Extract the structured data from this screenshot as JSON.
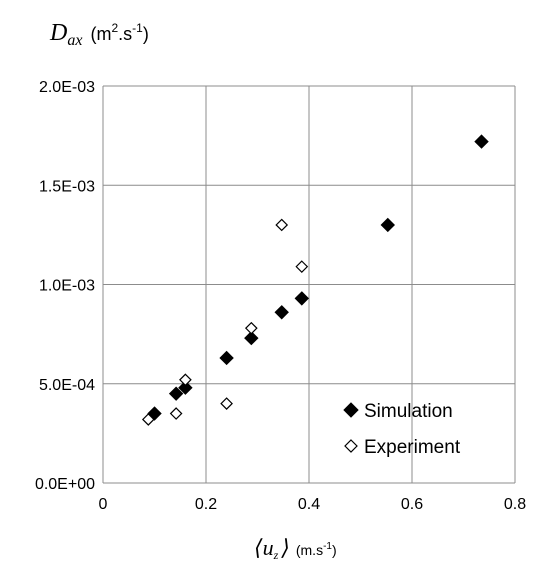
{
  "chart_data": {
    "type": "scatter",
    "title": "",
    "ylabel": {
      "symbol": "D",
      "subscript": "ax",
      "units_prefix": "(m",
      "units_sup1": "2",
      "units_mid": ".s",
      "units_sup2": "-1",
      "units_suffix": ")"
    },
    "xlabel": {
      "symbol": "⟨u",
      "subscript": "z",
      "close": "⟩",
      "units_prefix": "(m.s",
      "units_sup": "-1",
      "units_suffix": ")"
    },
    "xlim": [
      0,
      0.8
    ],
    "ylim": [
      0,
      0.002
    ],
    "x_ticks": [
      {
        "value": 0,
        "label": "0"
      },
      {
        "value": 0.2,
        "label": "0.2"
      },
      {
        "value": 0.4,
        "label": "0.4"
      },
      {
        "value": 0.6,
        "label": "0.6"
      },
      {
        "value": 0.8,
        "label": "0.8"
      }
    ],
    "y_ticks": [
      {
        "value": 0,
        "label": "0.0E+00"
      },
      {
        "value": 0.0005,
        "label": "5.0E-04"
      },
      {
        "value": 0.001,
        "label": "1.0E-03"
      },
      {
        "value": 0.0015,
        "label": "1.5E-03"
      },
      {
        "value": 0.002,
        "label": "2.0E-03"
      }
    ],
    "grid": true,
    "legend_position": "bottom-right",
    "series": [
      {
        "name": "Simulation",
        "marker": "filled-diamond",
        "color": "#000000",
        "points": [
          [
            0.1,
            0.00035
          ],
          [
            0.142,
            0.00045
          ],
          [
            0.16,
            0.00048
          ],
          [
            0.24,
            0.00063
          ],
          [
            0.288,
            0.00073
          ],
          [
            0.347,
            0.00086
          ],
          [
            0.386,
            0.00093
          ],
          [
            0.553,
            0.0013
          ],
          [
            0.735,
            0.00172
          ]
        ]
      },
      {
        "name": "Experiment",
        "marker": "open-diamond",
        "color": "#000000",
        "points": [
          [
            0.088,
            0.00032
          ],
          [
            0.142,
            0.00035
          ],
          [
            0.16,
            0.00052
          ],
          [
            0.24,
            0.0004
          ],
          [
            0.288,
            0.00078
          ],
          [
            0.347,
            0.0013
          ],
          [
            0.386,
            0.00109
          ]
        ]
      }
    ]
  }
}
